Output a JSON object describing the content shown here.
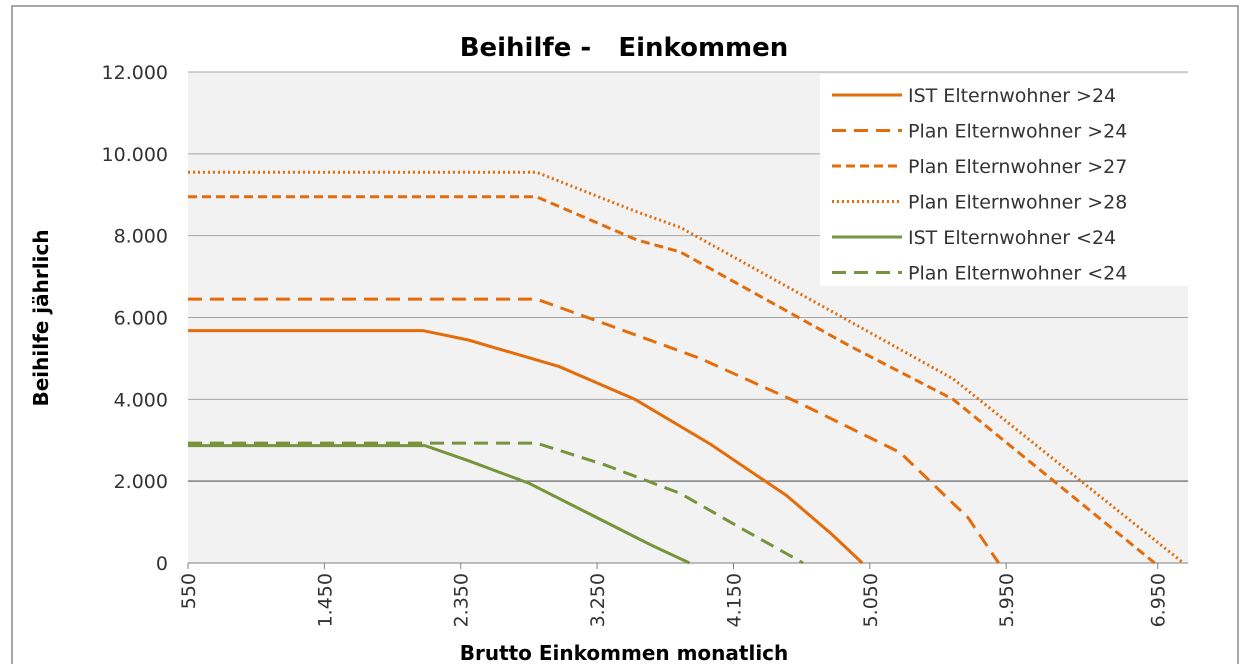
{
  "chart_data": {
    "type": "line",
    "title": "Beihilfe -   Einkommen",
    "x_label": "Brutto Einkommen monatlich",
    "y_label": "Beihilfe jährlich",
    "xlim": [
      550,
      7150
    ],
    "ylim": [
      0,
      12000
    ],
    "xticks": [
      {
        "value": 550,
        "label": "550"
      },
      {
        "value": 1450,
        "label": "1.450"
      },
      {
        "value": 2350,
        "label": "2.350"
      },
      {
        "value": 3250,
        "label": "3.250"
      },
      {
        "value": 4150,
        "label": "4.150"
      },
      {
        "value": 5050,
        "label": "5.050"
      },
      {
        "value": 5950,
        "label": "5.950"
      },
      {
        "value": 6950,
        "label": "6.950"
      }
    ],
    "yticks": [
      0,
      {
        "value": 2000,
        "label": "2.000"
      },
      {
        "value": 4000,
        "label": "4.000"
      },
      {
        "value": 6000,
        "label": "6.000"
      },
      {
        "value": 8000,
        "label": "8.000"
      },
      {
        "value": 10000,
        "label": "10.000"
      },
      {
        "value": 12000,
        "label": "12.000"
      }
    ],
    "grid": true,
    "legend": "top-right",
    "series": [
      {
        "name": "IST Elternwohner >24",
        "color": "#e46c0a",
        "dash": "solid",
        "x": [
          550,
          2100,
          2400,
          3000,
          3500,
          4000,
          4500,
          4800,
          5000
        ],
        "values": [
          5680,
          5680,
          5450,
          4800,
          4000,
          2900,
          1650,
          700,
          0
        ]
      },
      {
        "name": "Plan Elternwohner >24",
        "color": "#e46c0a",
        "dash": "dashed",
        "x": [
          550,
          2850,
          3300,
          3930,
          4590,
          5250,
          5700,
          5900
        ],
        "values": [
          6450,
          6450,
          5850,
          5000,
          3900,
          2700,
          1100,
          0
        ]
      },
      {
        "name": "Plan Elternwohner >27",
        "color": "#e46c0a",
        "dash": "short-dashed",
        "x": [
          550,
          2850,
          3510,
          3800,
          4920,
          5600,
          6930
        ],
        "values": [
          8950,
          8950,
          7900,
          7600,
          5300,
          4000,
          0
        ]
      },
      {
        "name": "Plan Elternwohner >28",
        "color": "#e46c0a",
        "dash": "dotted",
        "x": [
          550,
          2850,
          3500,
          3800,
          4920,
          5600,
          7120
        ],
        "values": [
          9550,
          9550,
          8600,
          8200,
          5900,
          4500,
          0
        ]
      },
      {
        "name": "IST Elternwohner <24",
        "color": "#77933c",
        "dash": "solid",
        "x": [
          550,
          2114,
          2400,
          2800,
          3200,
          3600,
          3860
        ],
        "values": [
          2870,
          2870,
          2500,
          1950,
          1200,
          450,
          0
        ]
      },
      {
        "name": "Plan Elternwohner <24",
        "color": "#77933c",
        "dash": "dashed",
        "x": [
          550,
          2850,
          3300,
          3800,
          4200,
          4610
        ],
        "values": [
          2930,
          2930,
          2400,
          1700,
          850,
          0
        ]
      }
    ]
  }
}
